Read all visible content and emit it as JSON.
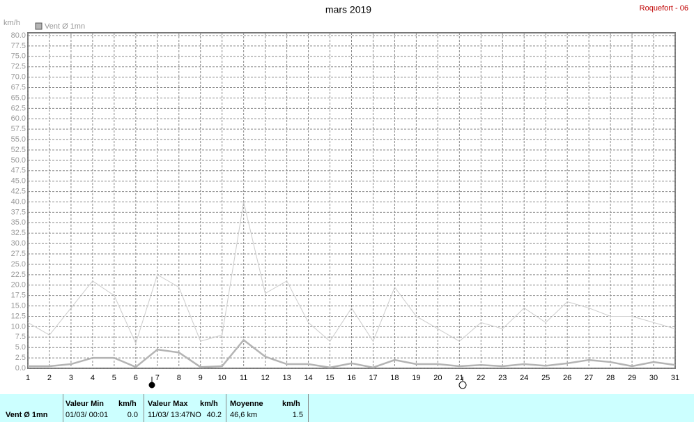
{
  "chart_data": {
    "type": "line",
    "title": "mars 2019",
    "station": "Roquefort - 06",
    "y_label": "km/h",
    "x": [
      1,
      2,
      3,
      4,
      5,
      6,
      7,
      8,
      9,
      10,
      11,
      12,
      13,
      14,
      15,
      16,
      17,
      18,
      19,
      20,
      21,
      22,
      23,
      24,
      25,
      26,
      27,
      28,
      29,
      30,
      31
    ],
    "xlim": [
      1,
      31
    ],
    "series": [
      {
        "name": "Vent Ø 1mn",
        "color": "#b4b4b4",
        "values": [
          0.5,
          0.5,
          1,
          2.5,
          2.5,
          0.3,
          4.5,
          3.8,
          0.3,
          0.5,
          6.8,
          2.8,
          1,
          1,
          0.2,
          1.2,
          0.2,
          2,
          1,
          1,
          0.5,
          0.8,
          0.5,
          1,
          0.6,
          1.2,
          2,
          1.5,
          0.5,
          1.5,
          0.8
        ]
      },
      {
        "color": "#cccccc",
        "values": [
          11,
          8,
          14.5,
          21,
          17.5,
          6,
          22.5,
          19.5,
          6.5,
          8,
          40,
          18,
          21,
          11,
          6.5,
          14.5,
          6.5,
          19.5,
          12.5,
          9.5,
          6.5,
          11,
          9.5,
          14.5,
          11,
          16,
          14.5,
          12.5,
          12.5,
          11,
          9.5
        ]
      }
    ],
    "ylim": [
      0,
      80
    ],
    "yticks": [
      {
        "value": 0,
        "label": "0.0"
      },
      {
        "value": 2.5,
        "label": "2.5"
      },
      {
        "value": 5,
        "label": "5.0"
      },
      {
        "value": 7.5,
        "label": "7.5"
      },
      {
        "value": 10,
        "label": "10.0"
      },
      {
        "value": 12.5,
        "label": "12.5"
      },
      {
        "value": 15,
        "label": "15.0"
      },
      {
        "value": 17.5,
        "label": "17.5"
      },
      {
        "value": 20,
        "label": "20.0"
      },
      {
        "value": 22.5,
        "label": "22.5"
      },
      {
        "value": 25,
        "label": "25.0"
      },
      {
        "value": 27.5,
        "label": "27.5"
      },
      {
        "value": 30,
        "label": "30.0"
      },
      {
        "value": 32.5,
        "label": "32.5"
      },
      {
        "value": 35,
        "label": "35.0"
      },
      {
        "value": 37.5,
        "label": "37.5"
      },
      {
        "value": 40,
        "label": "40.0"
      },
      {
        "value": 42.5,
        "label": "42.5"
      },
      {
        "value": 45,
        "label": "45.0"
      },
      {
        "value": 47.5,
        "label": "47.5"
      },
      {
        "value": 50,
        "label": "50.0"
      },
      {
        "value": 52.5,
        "label": "52.5"
      },
      {
        "value": 55,
        "label": "55.0"
      },
      {
        "value": 57.5,
        "label": "57.5"
      },
      {
        "value": 60,
        "label": "60.0"
      },
      {
        "value": 62.5,
        "label": "62.5"
      },
      {
        "value": 65,
        "label": "65.0"
      },
      {
        "value": 67.5,
        "label": "67.5"
      },
      {
        "value": 70,
        "label": "70.0"
      },
      {
        "value": 72.5,
        "label": "72.5"
      },
      {
        "value": 75,
        "label": "75.0"
      },
      {
        "value": 77.5,
        "label": "77.5"
      },
      {
        "value": 80,
        "label": "80.0"
      }
    ],
    "grid": true
  },
  "summary": {
    "name": "Vent Ø 1mn",
    "min": {
      "title": "Valeur Min",
      "unit": "km/h",
      "date": "01/03/  00:01",
      "value": "0.0"
    },
    "max": {
      "title": "Valeur Max",
      "unit": "km/h",
      "date": "11/03/  13:47NO",
      "value": "40.2"
    },
    "mean": {
      "title": "Moyenne",
      "unit": "km/h",
      "date": "46,6 km",
      "value": "1.5"
    }
  }
}
